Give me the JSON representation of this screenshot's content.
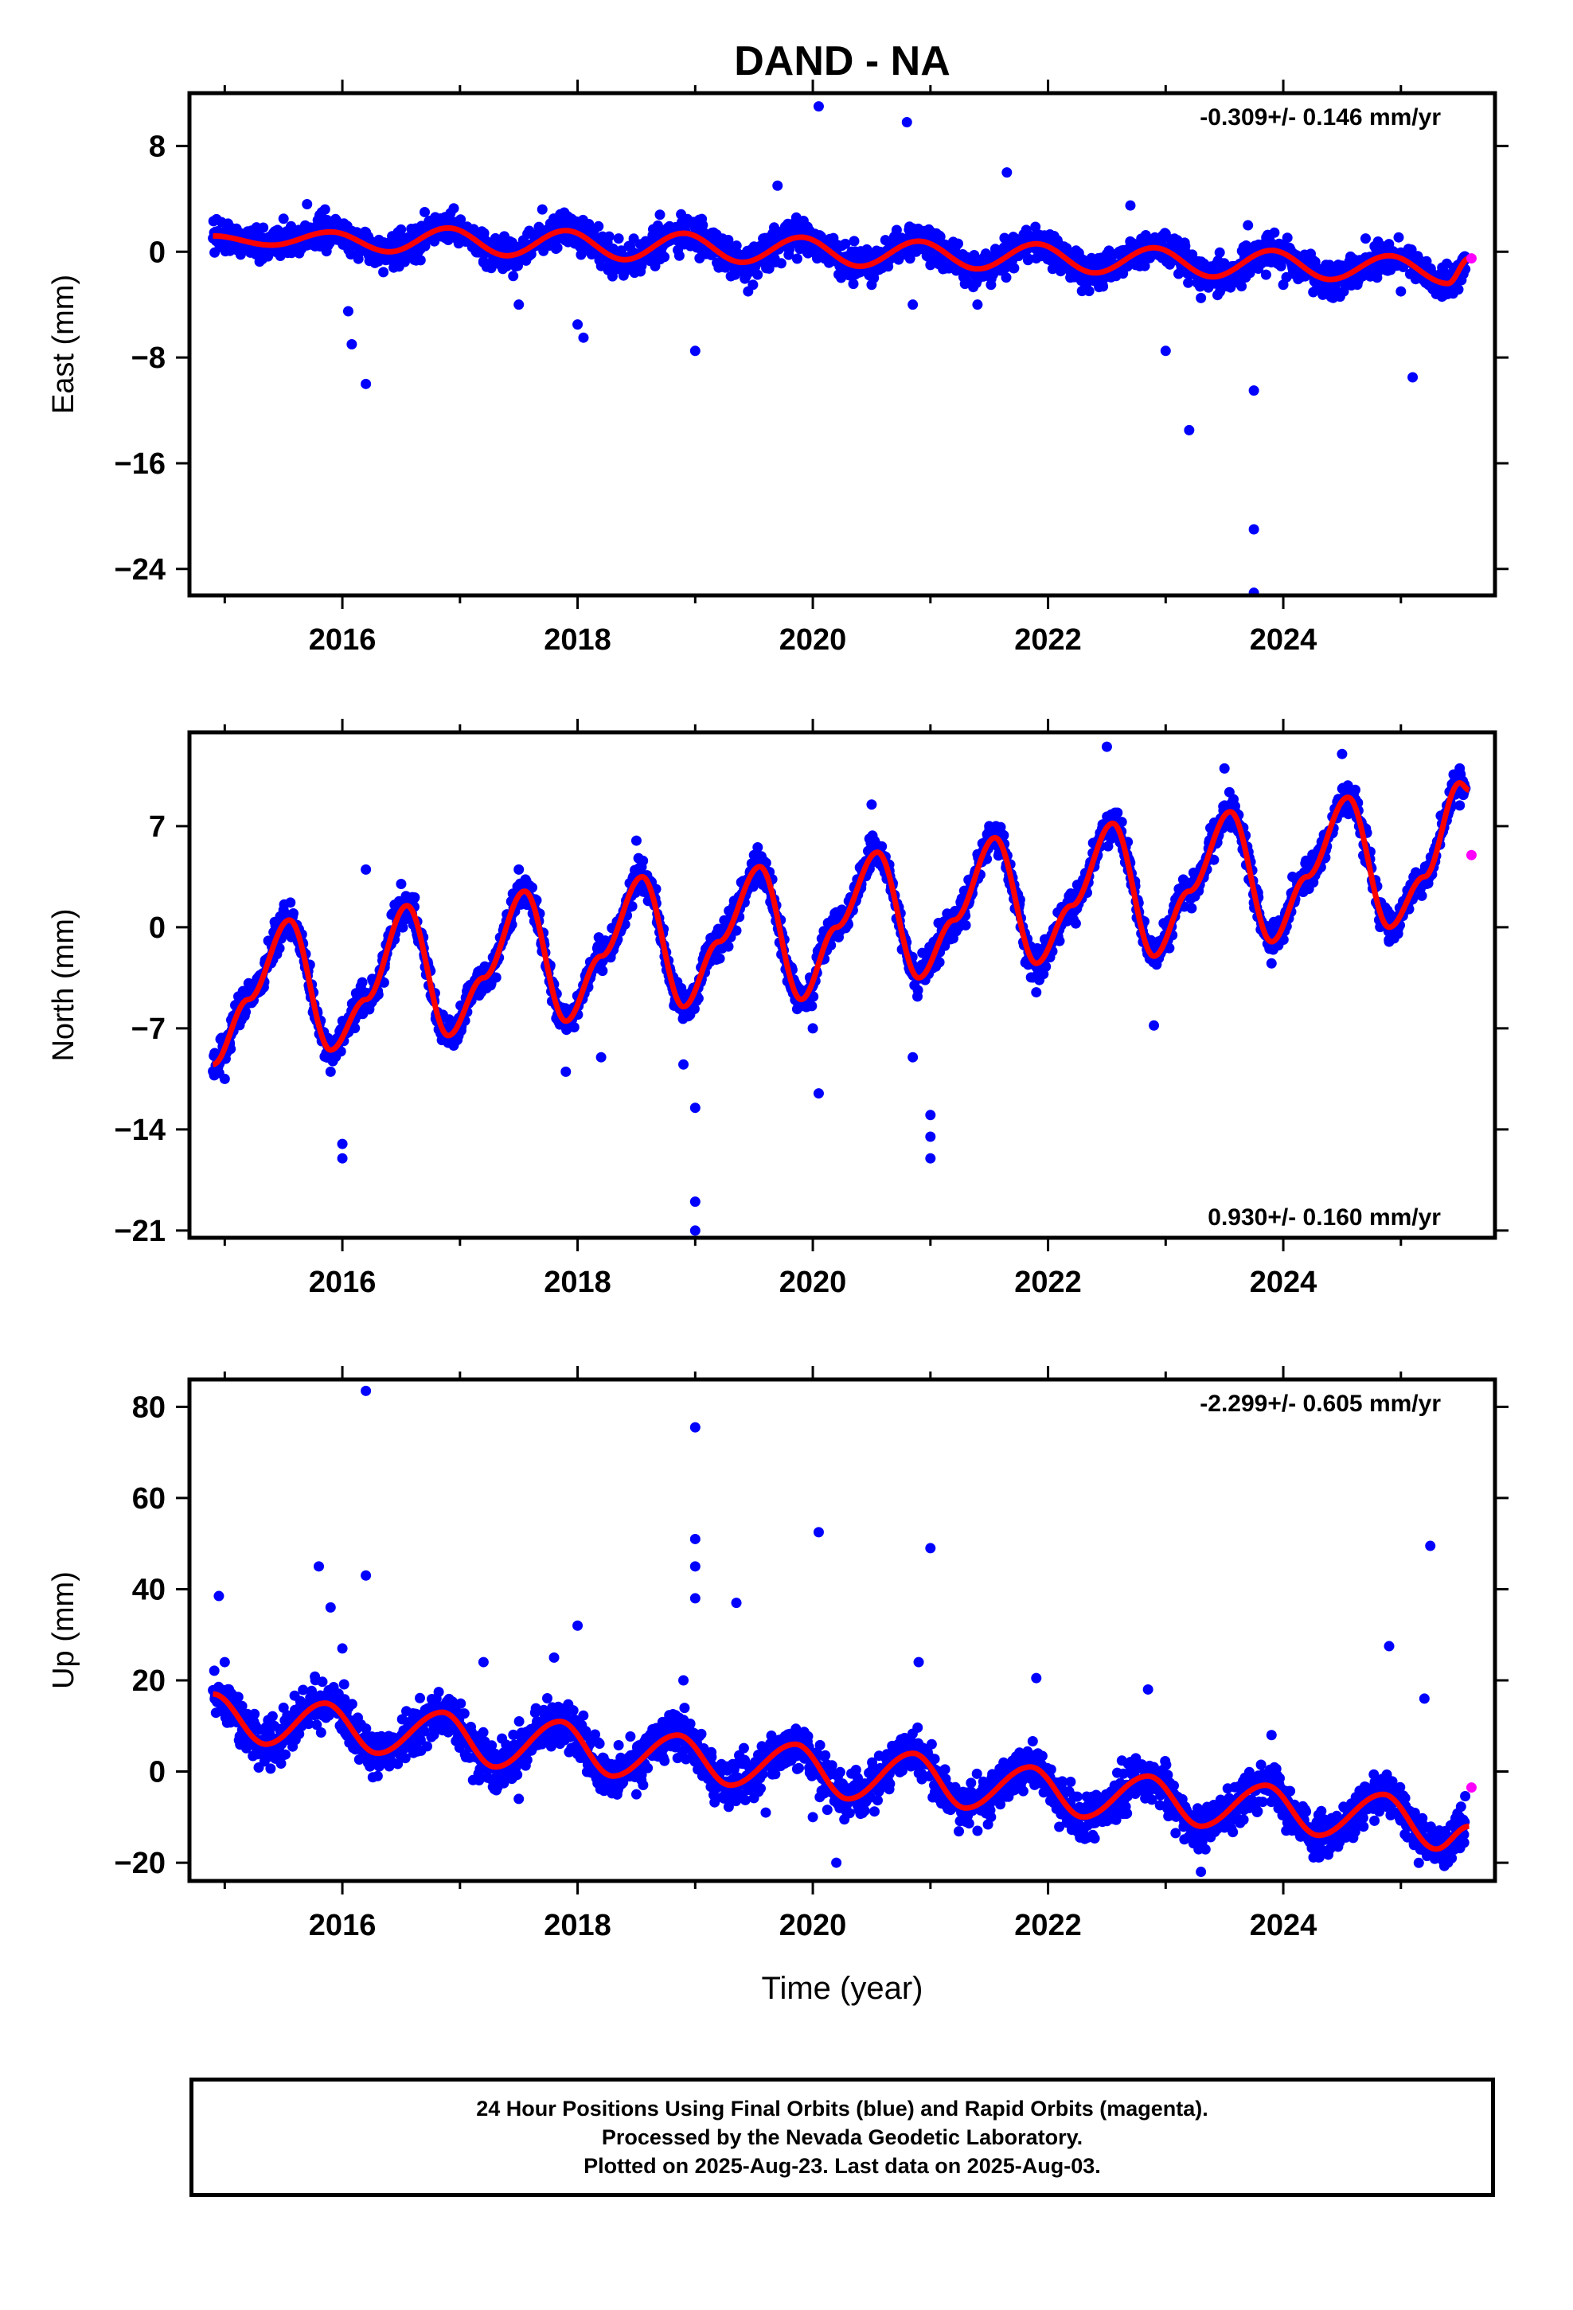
{
  "title": "DAND - NA",
  "colors": {
    "final_orbits": "#0000ff",
    "rapid_orbits": "#ff00ff",
    "model_fit": "#ff0000"
  },
  "footer": {
    "line1": "24 Hour Positions Using Final Orbits (blue) and Rapid Orbits (magenta).",
    "line2": "Processed by the Nevada Geodetic Laboratory.",
    "line3": "Plotted on 2025-Aug-23. Last data on 2025-Aug-03."
  },
  "chart_data": [
    {
      "type": "scatter",
      "component": "east",
      "ylabel": "East (mm)",
      "rate_label": "-0.309+/- 0.146 mm/yr",
      "rate_placement": "top-right",
      "xlim": [
        2014.7,
        2025.8
      ],
      "ylim": [
        -26,
        12
      ],
      "xticks": [
        2016,
        2018,
        2020,
        2022,
        2024
      ],
      "yticks": [
        8,
        0,
        -8,
        -16,
        -24
      ],
      "ytick_labels": [
        "8",
        "0",
        "−8",
        "−16",
        "−24"
      ],
      "grid": false,
      "model": {
        "x": [
          2014.9,
          2015.4,
          2015.9,
          2016.4,
          2016.9,
          2017.4,
          2017.9,
          2018.4,
          2018.9,
          2019.4,
          2019.9,
          2020.4,
          2020.9,
          2021.4,
          2021.9,
          2022.4,
          2022.9,
          2023.4,
          2023.9,
          2024.4,
          2024.9,
          2025.4,
          2025.58
        ],
        "y": [
          1.2,
          0.5,
          1.5,
          0.0,
          1.8,
          -0.3,
          1.6,
          -0.6,
          1.4,
          -0.8,
          1.1,
          -1.1,
          0.8,
          -1.3,
          0.6,
          -1.6,
          0.3,
          -1.9,
          0.1,
          -2.1,
          -0.3,
          -2.4,
          -0.5
        ]
      },
      "final_orbits": [
        [
          2015.0,
          1.5
        ],
        [
          2015.2,
          0.3
        ],
        [
          2015.5,
          2.5
        ],
        [
          2015.7,
          3.6
        ],
        [
          2015.9,
          1.2
        ],
        [
          2016.05,
          -4.5
        ],
        [
          2016.08,
          -7.0
        ],
        [
          2016.2,
          -10.0
        ],
        [
          2016.4,
          -0.2
        ],
        [
          2016.7,
          3.0
        ],
        [
          2016.9,
          1.5
        ],
        [
          2017.2,
          -0.8
        ],
        [
          2017.5,
          -4.0
        ],
        [
          2017.7,
          3.2
        ],
        [
          2018.0,
          -5.5
        ],
        [
          2018.05,
          -6.5
        ],
        [
          2018.3,
          -1.0
        ],
        [
          2018.7,
          2.8
        ],
        [
          2019.0,
          -7.5
        ],
        [
          2019.2,
          -1.2
        ],
        [
          2019.45,
          -3.0
        ],
        [
          2019.7,
          5.0
        ],
        [
          2020.05,
          11.0
        ],
        [
          2020.3,
          -1.5
        ],
        [
          2020.5,
          -2.5
        ],
        [
          2020.8,
          9.8
        ],
        [
          2020.85,
          -4.0
        ],
        [
          2021.0,
          -1.0
        ],
        [
          2021.4,
          -4.0
        ],
        [
          2021.65,
          6.0
        ],
        [
          2021.9,
          -0.5
        ],
        [
          2022.4,
          -1.8
        ],
        [
          2022.7,
          3.5
        ],
        [
          2023.0,
          -7.5
        ],
        [
          2023.2,
          -13.5
        ],
        [
          2023.3,
          -3.5
        ],
        [
          2023.7,
          2.0
        ],
        [
          2023.75,
          -10.5
        ],
        [
          2023.75,
          -21.0
        ],
        [
          2023.75,
          -25.8
        ],
        [
          2024.0,
          -2.5
        ],
        [
          2024.3,
          -2.8
        ],
        [
          2024.7,
          1.0
        ],
        [
          2025.0,
          -3.0
        ],
        [
          2025.1,
          -9.5
        ],
        [
          2025.3,
          -3.2
        ],
        [
          2025.55,
          -0.5
        ]
      ],
      "rapid_orbits": [
        [
          2025.6,
          -0.5
        ]
      ]
    },
    {
      "type": "scatter",
      "component": "north",
      "ylabel": "North (mm)",
      "rate_label": "0.930+/- 0.160 mm/yr",
      "rate_placement": "bottom-right",
      "xlim": [
        2014.7,
        2025.8
      ],
      "ylim": [
        -21.5,
        13.5
      ],
      "xticks": [
        2016,
        2018,
        2020,
        2022,
        2024
      ],
      "yticks": [
        7,
        0,
        -7,
        -14,
        -21
      ],
      "ytick_labels": [
        "7",
        "0",
        "−7",
        "−14",
        "−21"
      ],
      "grid": false,
      "model": {
        "x": [
          2014.9,
          2015.2,
          2015.55,
          2015.9,
          2016.2,
          2016.55,
          2016.9,
          2017.2,
          2017.55,
          2017.9,
          2018.2,
          2018.55,
          2018.9,
          2019.2,
          2019.55,
          2019.9,
          2020.2,
          2020.55,
          2020.9,
          2021.2,
          2021.55,
          2021.9,
          2022.2,
          2022.55,
          2022.9,
          2023.2,
          2023.55,
          2023.9,
          2024.2,
          2024.55,
          2024.9,
          2025.2,
          2025.5,
          2025.58
        ],
        "y": [
          -9.5,
          -5.0,
          0.5,
          -8.5,
          -5.0,
          1.5,
          -7.5,
          -3.5,
          2.5,
          -6.5,
          -2.0,
          3.5,
          -5.5,
          -1.0,
          4.2,
          -5.0,
          0.0,
          5.2,
          -3.5,
          0.5,
          6.2,
          -2.5,
          1.5,
          7.2,
          -2.0,
          2.5,
          8.0,
          -1.0,
          3.5,
          9.0,
          0.0,
          3.5,
          10.0,
          9.5
        ]
      },
      "final_orbits": [
        [
          2015.0,
          -10.5
        ],
        [
          2015.5,
          1.2
        ],
        [
          2015.9,
          -10.0
        ],
        [
          2016.0,
          -15.0
        ],
        [
          2016.0,
          -16.0
        ],
        [
          2016.2,
          4.0
        ],
        [
          2016.5,
          3.0
        ],
        [
          2016.9,
          -8.0
        ],
        [
          2017.5,
          4.0
        ],
        [
          2017.9,
          -10.0
        ],
        [
          2018.2,
          -9.0
        ],
        [
          2018.5,
          6.0
        ],
        [
          2018.9,
          -9.5
        ],
        [
          2019.0,
          -12.5
        ],
        [
          2019.0,
          -19.0
        ],
        [
          2019.0,
          -21.0
        ],
        [
          2019.5,
          5.0
        ],
        [
          2020.0,
          -7.0
        ],
        [
          2020.05,
          -11.5
        ],
        [
          2020.5,
          8.5
        ],
        [
          2020.85,
          -9.0
        ],
        [
          2021.0,
          -13.0
        ],
        [
          2021.0,
          -14.5
        ],
        [
          2021.0,
          -16.0
        ],
        [
          2021.5,
          7.0
        ],
        [
          2021.9,
          -4.5
        ],
        [
          2022.5,
          12.5
        ],
        [
          2022.9,
          -6.8
        ],
        [
          2023.5,
          11.0
        ],
        [
          2023.9,
          -2.5
        ],
        [
          2024.5,
          12.0
        ],
        [
          2024.9,
          -1.0
        ],
        [
          2025.5,
          11.0
        ]
      ],
      "rapid_orbits": [
        [
          2025.6,
          5.0
        ]
      ]
    },
    {
      "type": "scatter",
      "component": "up",
      "ylabel": "Up (mm)",
      "xlabel": "Time (year)",
      "rate_label": "-2.299+/- 0.605 mm/yr",
      "rate_placement": "top-right",
      "xlim": [
        2014.7,
        2025.8
      ],
      "ylim": [
        -24,
        86
      ],
      "xticks": [
        2016,
        2018,
        2020,
        2022,
        2024
      ],
      "yticks": [
        80,
        60,
        40,
        20,
        0,
        -20
      ],
      "ytick_labels": [
        "80",
        "60",
        "40",
        "20",
        "0",
        "−20"
      ],
      "grid": false,
      "model": {
        "x": [
          2014.9,
          2015.35,
          2015.85,
          2016.3,
          2016.85,
          2017.3,
          2017.85,
          2018.3,
          2018.85,
          2019.3,
          2019.85,
          2020.3,
          2020.85,
          2021.3,
          2021.85,
          2022.3,
          2022.85,
          2023.3,
          2023.85,
          2024.3,
          2024.85,
          2025.3,
          2025.58
        ],
        "y": [
          17,
          6,
          15,
          4,
          13,
          1,
          11,
          -1,
          8,
          -3,
          6,
          -6,
          4,
          -8,
          1,
          -10,
          -1,
          -12,
          -3,
          -14,
          -5,
          -17,
          -12
        ]
      },
      "final_orbits": [
        [
          2014.95,
          38.5
        ],
        [
          2015.0,
          24.0
        ],
        [
          2015.5,
          14.0
        ],
        [
          2015.8,
          45.0
        ],
        [
          2015.9,
          36.0
        ],
        [
          2016.0,
          27.0
        ],
        [
          2016.2,
          83.5
        ],
        [
          2016.2,
          43.0
        ],
        [
          2016.3,
          -1.0
        ],
        [
          2016.8,
          16.0
        ],
        [
          2017.2,
          24.0
        ],
        [
          2017.5,
          -6.0
        ],
        [
          2017.8,
          25.0
        ],
        [
          2018.0,
          32.0
        ],
        [
          2018.5,
          -5.0
        ],
        [
          2018.9,
          20.0
        ],
        [
          2019.0,
          75.5
        ],
        [
          2019.0,
          51.0
        ],
        [
          2019.0,
          45.0
        ],
        [
          2019.0,
          38.0
        ],
        [
          2019.35,
          37.0
        ],
        [
          2019.6,
          -9.0
        ],
        [
          2020.0,
          -10.0
        ],
        [
          2020.05,
          52.5
        ],
        [
          2020.2,
          -20.0
        ],
        [
          2020.9,
          24.0
        ],
        [
          2021.0,
          49.0
        ],
        [
          2021.4,
          -13.0
        ],
        [
          2021.9,
          20.5
        ],
        [
          2022.4,
          -9.0
        ],
        [
          2022.85,
          18.0
        ],
        [
          2023.3,
          -22.0
        ],
        [
          2023.9,
          8.0
        ],
        [
          2024.3,
          -9.5
        ],
        [
          2024.9,
          27.5
        ],
        [
          2025.2,
          16.0
        ],
        [
          2025.25,
          49.5
        ],
        [
          2025.4,
          -20.0
        ],
        [
          2025.5,
          -10.0
        ]
      ],
      "rapid_orbits": [
        [
          2025.6,
          -3.5
        ]
      ]
    }
  ]
}
